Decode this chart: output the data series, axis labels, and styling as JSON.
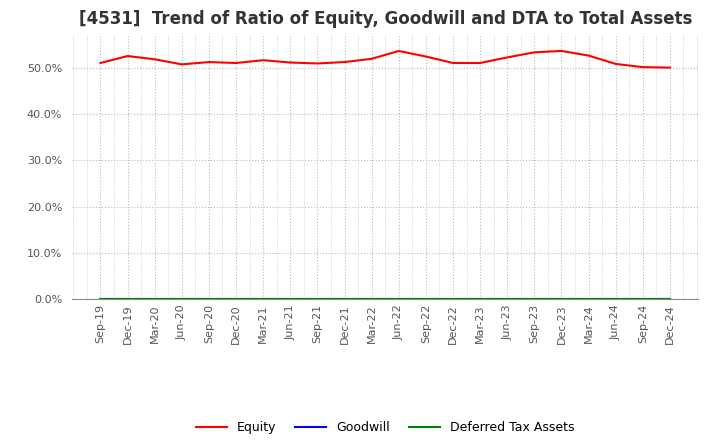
{
  "title": "[4531]  Trend of Ratio of Equity, Goodwill and DTA to Total Assets",
  "x_labels": [
    "Sep-19",
    "Dec-19",
    "Mar-20",
    "Jun-20",
    "Sep-20",
    "Dec-20",
    "Mar-21",
    "Jun-21",
    "Sep-21",
    "Dec-21",
    "Mar-22",
    "Jun-22",
    "Sep-22",
    "Dec-22",
    "Mar-23",
    "Jun-23",
    "Sep-23",
    "Dec-23",
    "Mar-24",
    "Jun-24",
    "Sep-24",
    "Dec-24"
  ],
  "equity": [
    51.0,
    52.5,
    51.8,
    50.7,
    51.2,
    51.0,
    51.6,
    51.1,
    50.9,
    51.2,
    51.9,
    53.6,
    52.4,
    51.0,
    51.0,
    52.2,
    53.3,
    53.6,
    52.6,
    50.8,
    50.1,
    50.0
  ],
  "goodwill": [
    0.0,
    0.0,
    0.0,
    0.0,
    0.0,
    0.0,
    0.0,
    0.0,
    0.0,
    0.0,
    0.0,
    0.0,
    0.0,
    0.0,
    0.0,
    0.0,
    0.0,
    0.0,
    0.0,
    0.0,
    0.0,
    0.0
  ],
  "dta": [
    0.0,
    0.0,
    0.0,
    0.0,
    0.0,
    0.0,
    0.0,
    0.0,
    0.0,
    0.0,
    0.0,
    0.0,
    0.0,
    0.0,
    0.0,
    0.0,
    0.0,
    0.0,
    0.0,
    0.0,
    0.0,
    0.0
  ],
  "equity_color": "#FF0000",
  "goodwill_color": "#0000FF",
  "dta_color": "#008000",
  "ylim": [
    0,
    57
  ],
  "yticks": [
    0,
    10,
    20,
    30,
    40,
    50
  ],
  "background_color": "#FFFFFF",
  "plot_bg_color": "#FFFFFF",
  "grid_color": "#BBBBBB",
  "title_fontsize": 12,
  "tick_fontsize": 8,
  "legend_labels": [
    "Equity",
    "Goodwill",
    "Deferred Tax Assets"
  ]
}
